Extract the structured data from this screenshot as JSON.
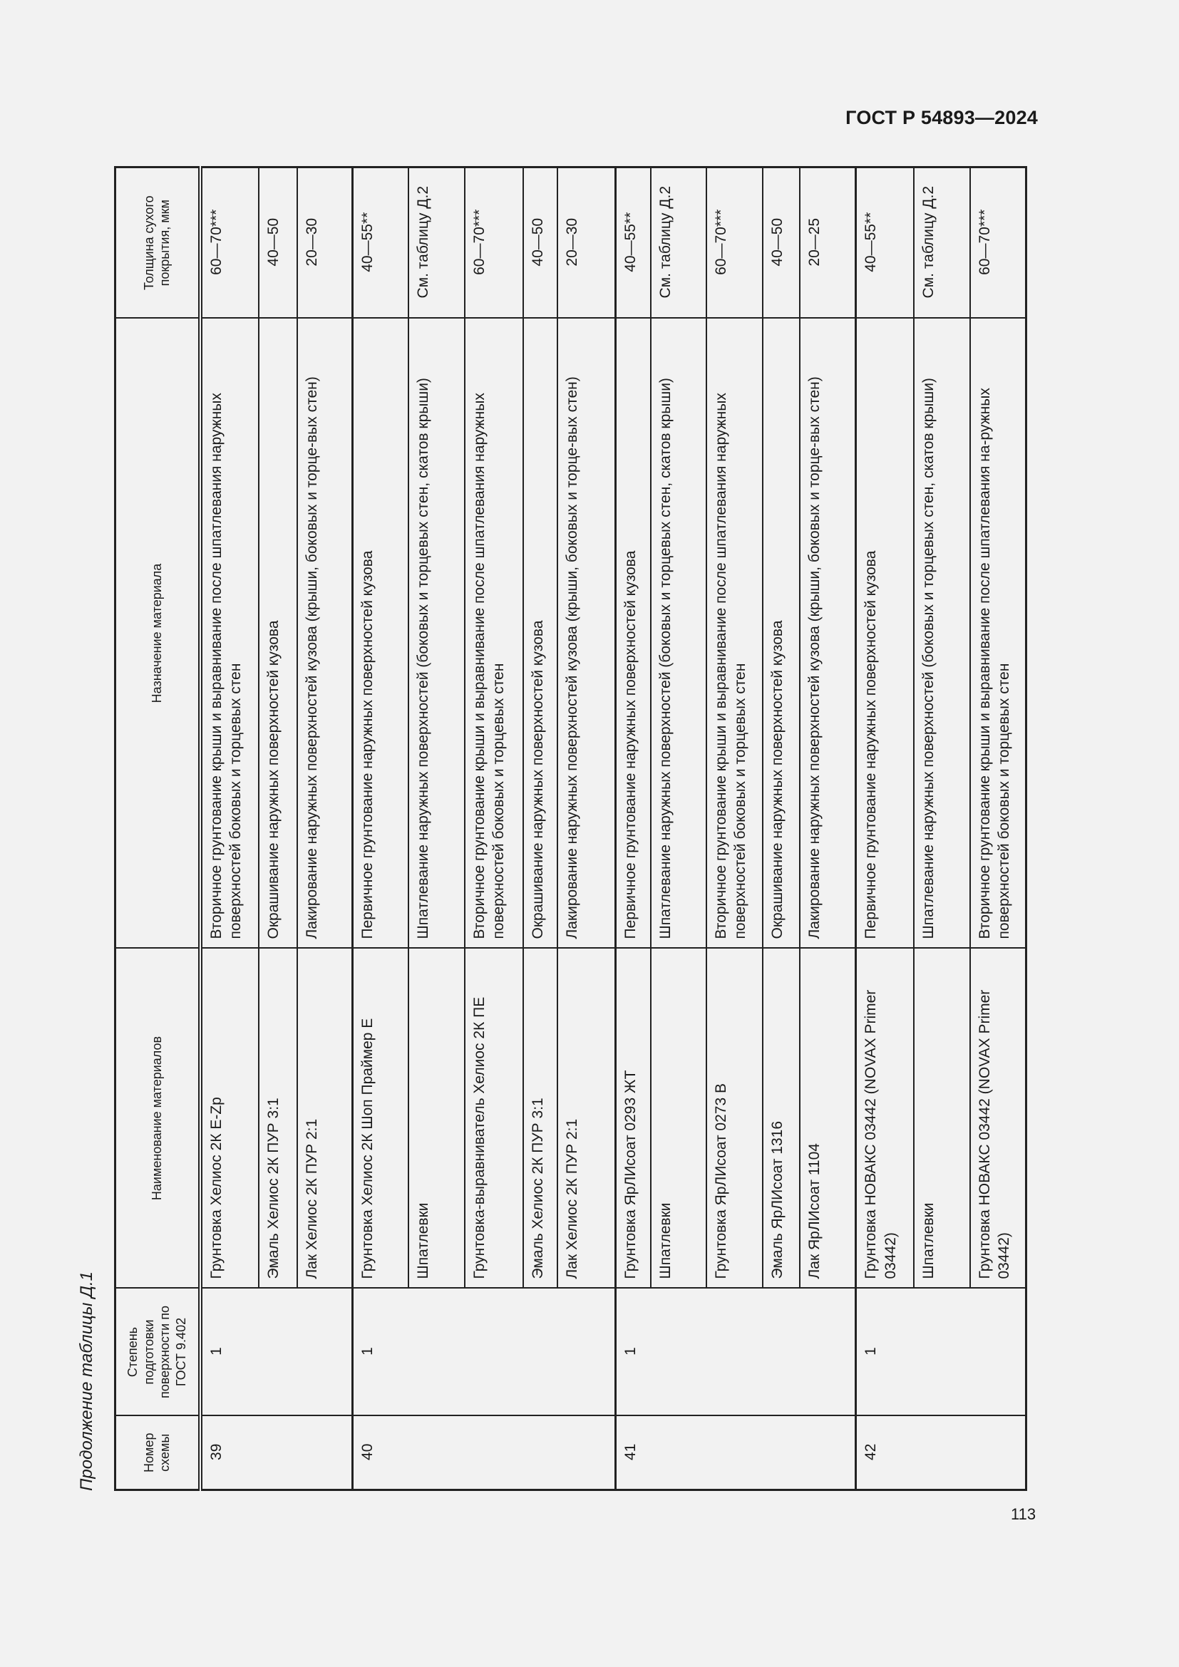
{
  "document": {
    "code": "ГОСТ Р 54893—2024",
    "page_number": "113"
  },
  "caption": "Продолжение таблицы Д.1",
  "table": {
    "headers": {
      "scheme_number": "Номер схемы",
      "surface_prep": "Степень подготовки поверхности по ГОСТ 9.402",
      "material_name": "Наименование материалов",
      "purpose": "Назначение материала",
      "thickness": "Толщина сухого покрытия, мкм"
    },
    "schemes": [
      {
        "number": "39",
        "prep": "1",
        "rows": [
          {
            "name": "Грунтовка Хелиос 2К E-Zp",
            "purpose": "Вторичное грунтование крыши и выравнивание после шпатлевания наружных поверхностей боковых и торцевых стен",
            "thickness": "60—70***"
          },
          {
            "name": "Эмаль Хелиос 2К ПУР 3:1",
            "purpose": "Окрашивание наружных поверхностей кузова",
            "thickness": "40—50"
          },
          {
            "name": "Лак Хелиос 2К ПУР 2:1",
            "purpose": "Лакирование наружных поверхностей кузова (крыши, боковых и торце-вых стен)",
            "thickness": "20—30"
          }
        ]
      },
      {
        "number": "40",
        "prep": "1",
        "rows": [
          {
            "name": "Грунтовка Хелиос 2К Шоп Праймер Е",
            "purpose": "Первичное грунтование наружных поверхностей кузова",
            "thickness": "40—55**"
          },
          {
            "name": "Шпатлевки",
            "purpose": "Шпатлевание наружных поверхностей (боковых и торцевых стен, скатов крыши)",
            "thickness": "См. таблицу Д.2"
          },
          {
            "name": "Грунтовка-выравниватель Хелиос 2К ПЕ",
            "purpose": "Вторичное грунтование крыши и выравнивание после шпатлевания наружных поверхностей боковых и торцевых стен",
            "thickness": "60—70***"
          },
          {
            "name": "Эмаль Хелиос 2К ПУР 3:1",
            "purpose": "Окрашивание наружных поверхностей кузова",
            "thickness": "40—50"
          },
          {
            "name": "Лак Хелиос 2К ПУР 2:1",
            "purpose": "Лакирование наружных поверхностей кузова (крыши, боковых и торце-вых стен)",
            "thickness": "20—30"
          }
        ]
      },
      {
        "number": "41",
        "prep": "1",
        "rows": [
          {
            "name": "Грунтовка ЯрЛИсоат 0293 ЖТ",
            "purpose": "Первичное грунтование наружных поверхностей кузова",
            "thickness": "40—55**"
          },
          {
            "name": "Шпатлевки",
            "purpose": "Шпатлевание наружных поверхностей (боковых и торцевых стен, скатов крыши)",
            "thickness": "См. таблицу Д.2"
          },
          {
            "name": "Грунтовка ЯрЛИсоат 0273 В",
            "purpose": "Вторичное грунтование крыши и выравнивание после шпатлевания наружных поверхностей боковых и торцевых стен",
            "thickness": "60—70***"
          },
          {
            "name": "Эмаль ЯрЛИсоат 1316",
            "purpose": "Окрашивание наружных поверхностей кузова",
            "thickness": "40—50"
          },
          {
            "name": "Лак ЯрЛИсоат 1104",
            "purpose": "Лакирование наружных поверхностей кузова (крыши, боковых и торце-вых стен)",
            "thickness": "20—25"
          }
        ]
      },
      {
        "number": "42",
        "prep": "1",
        "rows": [
          {
            "name": "Грунтовка НОВАКС 03442 (NOVAX Primer 03442)",
            "purpose": "Первичное грунтование наружных поверхностей кузова",
            "thickness": "40—55**"
          },
          {
            "name": "Шпатлевки",
            "purpose": "Шпатлевание наружных поверхностей (боковых и торцевых стен, скатов крыши)",
            "thickness": "См. таблицу Д.2"
          },
          {
            "name": "Грунтовка НОВАКС 03442 (NOVAX Primer 03442)",
            "purpose": "Вторичное грунтование крыши и выравнивание после шпатлевания на-ружных поверхностей боковых и торцевых стен",
            "thickness": "60—70***"
          }
        ]
      }
    ]
  }
}
